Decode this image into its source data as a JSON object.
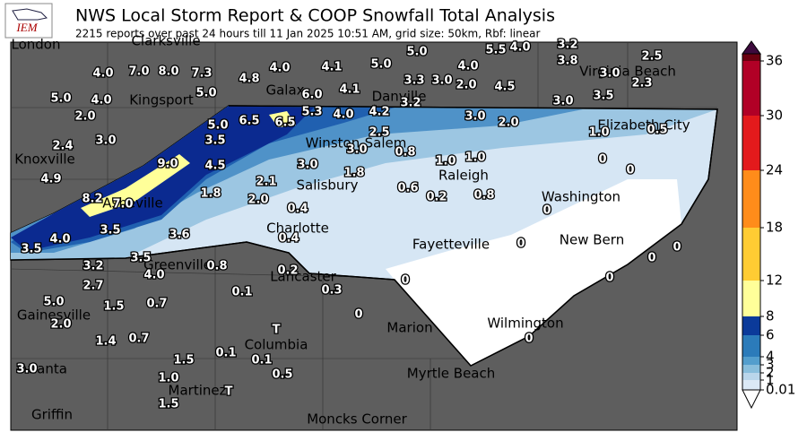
{
  "header": {
    "logo": "IEM",
    "title": "NWS Local Storm Report & COOP Snowfall Total Analysis",
    "subtitle": "2215 reports over past 24 hours till 11 Jan 2025 10:51 AM, grid size: 50km, Rbf: linear"
  },
  "cities": [
    "London",
    "Clarksville",
    "Kingsport",
    "Galax",
    "Danville",
    "Virginia Beach",
    "Elizabeth City",
    "Knoxville",
    "Winston-Salem",
    "Salisbury",
    "Raleigh",
    "Washington",
    "Asheville",
    "Charlotte",
    "Fayetteville",
    "New Bern",
    "Greenville",
    "Lancaster",
    "Gainesville",
    "Marion",
    "Wilmington",
    "Columbia",
    "Atlanta",
    "Myrtle Beach",
    "Martinez",
    "Griffin",
    "Moncks Corner"
  ],
  "reports": [
    "4.0",
    "7.0",
    "8.0",
    "7.3",
    "4.8",
    "4.0",
    "4.1",
    "5.0",
    "5.0",
    "5.5",
    "4.0",
    "3.2",
    "3.8",
    "2.5",
    "5.0",
    "4.0",
    "5.0",
    "6.0",
    "3.3",
    "3.0",
    "4.0",
    "2.0",
    "4.5",
    "3.0",
    "2.3",
    "3.5",
    "4.1",
    "2.0",
    "5.3",
    "4.0",
    "4.2",
    "3.2",
    "3.0",
    "5.0",
    "6.5",
    "6.5",
    "3.0",
    "2.0",
    "1.0",
    "0.5",
    "3.0",
    "3.5",
    "2.5",
    "2.4",
    "3.0",
    "0.8",
    "1.0",
    "1.0",
    "0",
    "0",
    "4.9",
    "9.0",
    "4.5",
    "3.0",
    "1.8",
    "2.1",
    "0.6",
    "0.2",
    "0.8",
    "8.2",
    "7.0",
    "1.8",
    "2.0",
    "0.4",
    "0",
    "4.0",
    "3.5",
    "3.6",
    "0.4",
    "0",
    "3.5",
    "3.5",
    "3.2",
    "0.8",
    "0",
    "0",
    "4.0",
    "0.2",
    "2.7",
    "0",
    "0",
    "0.3",
    "0.1",
    "5.0",
    "1.5",
    "0.7",
    "0",
    "2.0",
    "0",
    "1.4",
    "0.7",
    "T",
    "0.1",
    "0.1",
    "1.5",
    "3.0",
    "1.0",
    "0.5",
    "T",
    "1.5"
  ],
  "colorbar": {
    "ticks": [
      "0.01",
      "1",
      "2",
      "3",
      "4",
      "6",
      "8",
      "12",
      "18",
      "24",
      "30",
      "36"
    ],
    "colors": [
      "#dbe9f6",
      "#bad6eb",
      "#89bedc",
      "#539ecd",
      "#2b7bba",
      "#0b3a9a",
      "#ffff99",
      "#ffcc33",
      "#ff8c1a",
      "#e31a1c",
      "#b10026",
      "#6b0010"
    ],
    "over_color": "#3d0a3d",
    "under_color": "#ffffff"
  }
}
